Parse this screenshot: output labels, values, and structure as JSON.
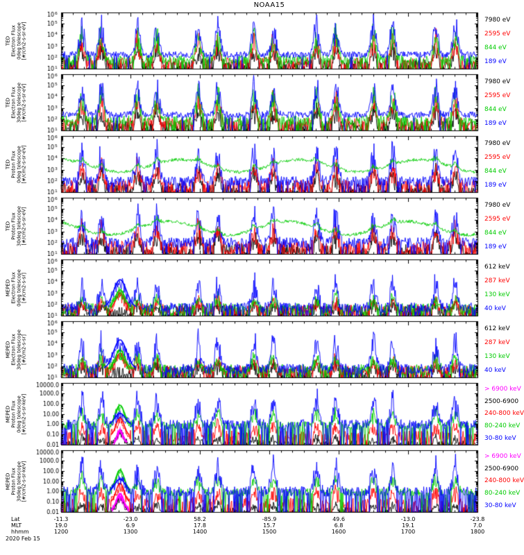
{
  "chart_data": {
    "type": "line",
    "title": "NOAA15",
    "date_label": "2020 Feb 15",
    "x_range_hours": [
      12,
      18
    ],
    "grid": false,
    "legend_position": "right",
    "clusters": [
      12.3,
      12.58,
      13.1,
      13.38,
      13.98,
      14.26,
      14.78,
      15.06,
      15.68,
      15.96,
      16.5,
      16.78,
      17.4,
      17.68
    ],
    "cluster_w": 0.05,
    "colors": {
      "black": "#000000",
      "red": "#ff0000",
      "green": "#00cc00",
      "blue": "#0000ff",
      "magenta": "#ff00ff"
    },
    "xaxis": {
      "rows": [
        {
          "label": "Lat",
          "values": [
            "-11.3",
            "-23.0",
            "58.2",
            "-85.9",
            "49.6",
            "-13.0",
            "-23.8"
          ]
        },
        {
          "label": "MLT",
          "values": [
            "19.0",
            "6.9",
            "17.8",
            "15.7",
            "6.8",
            "19.1",
            "7.0"
          ]
        },
        {
          "label": "hhmm",
          "values": [
            "1200",
            "1300",
            "1400",
            "1500",
            "1600",
            "1700",
            "1800"
          ]
        }
      ]
    },
    "panels": [
      {
        "name": "ted-electron-flux-0deg",
        "h": 86,
        "ymin": 1,
        "ymax": 6,
        "ytick": {
          "style": "pow"
        },
        "ylabel": [
          "TED",
          "Electron Flux",
          "0deg telescope",
          "[#/cm2-s-sr-eV]"
        ],
        "legend": [
          {
            "label": "7980 eV",
            "color": "#000000"
          },
          {
            "label": "2595 eV",
            "color": "#ff0000"
          },
          {
            "label": "844 eV",
            "color": "#00cc00"
          },
          {
            "label": "189 eV",
            "color": "#0000ff"
          }
        ],
        "series": [
          {
            "label": "7980 eV",
            "color": "#000000",
            "base": 1.25,
            "noise": 0.55,
            "drop": 0.32,
            "spike": 2.0
          },
          {
            "label": "2595 eV",
            "color": "#ff0000",
            "base": 1.5,
            "noise": 0.5,
            "drop": 0.26,
            "spike": 2.6
          },
          {
            "label": "844 eV",
            "color": "#00cc00",
            "base": 1.75,
            "noise": 0.45,
            "drop": 0.2,
            "spike": 3.0
          },
          {
            "label": "189 eV",
            "color": "#0000ff",
            "base": 2.25,
            "noise": 0.28,
            "drop": 0.04,
            "spike": 3.4
          }
        ]
      },
      {
        "name": "ted-electron-flux-30deg",
        "h": 86,
        "ymin": 1,
        "ymax": 6,
        "ytick": {
          "style": "pow"
        },
        "ylabel": [
          "TED",
          "Electron Flux",
          "30deg telescope",
          "[#/cm2-s-sr-eV]"
        ],
        "legend": [
          {
            "label": "7980 eV",
            "color": "#000000"
          },
          {
            "label": "2595 eV",
            "color": "#ff0000"
          },
          {
            "label": "844 eV",
            "color": "#00cc00"
          },
          {
            "label": "189 eV",
            "color": "#0000ff"
          }
        ],
        "series": [
          {
            "label": "7980 eV",
            "color": "#000000",
            "base": 1.3,
            "noise": 0.55,
            "drop": 0.3,
            "spike": 2.0
          },
          {
            "label": "2595 eV",
            "color": "#ff0000",
            "base": 1.6,
            "noise": 0.5,
            "drop": 0.24,
            "spike": 2.6
          },
          {
            "label": "844 eV",
            "color": "#00cc00",
            "base": 1.85,
            "noise": 0.45,
            "drop": 0.18,
            "spike": 3.0
          },
          {
            "label": "189 eV",
            "color": "#0000ff",
            "base": 2.4,
            "noise": 0.28,
            "drop": 0.04,
            "spike": 3.3
          }
        ]
      },
      {
        "name": "ted-proton-flux-0deg",
        "h": 86,
        "ymin": 1,
        "ymax": 6,
        "ytick": {
          "style": "pow"
        },
        "ylabel": [
          "TED",
          "Proton Flux",
          "0deg telescope",
          "[#/cm2-s-sr-eV]"
        ],
        "legend": [
          {
            "label": "7980 eV",
            "color": "#000000"
          },
          {
            "label": "2595 eV",
            "color": "#ff0000"
          },
          {
            "label": "844 eV",
            "color": "#00cc00"
          },
          {
            "label": "189 eV",
            "color": "#0000ff"
          }
        ],
        "series": [
          {
            "label": "7980 eV",
            "color": "#000000",
            "base": 1.25,
            "noise": 0.6,
            "drop": 0.38,
            "spike": 1.9
          },
          {
            "label": "2595 eV",
            "color": "#ff0000",
            "base": 1.55,
            "noise": 0.55,
            "drop": 0.3,
            "spike": 2.2
          },
          {
            "label": "189 eV",
            "color": "#0000ff",
            "base": 1.95,
            "noise": 0.45,
            "drop": 0.15,
            "spike": 3.5
          },
          {
            "label": "844 eV",
            "color": "#00cc00",
            "base": 3.35,
            "noise": 0.14,
            "drop": 0,
            "spike": 0.5,
            "wave": {
              "amp": 0.55,
              "period": 1.72,
              "phase": 1.6
            }
          }
        ]
      },
      {
        "name": "ted-proton-flux-30deg",
        "h": 86,
        "ymin": 1,
        "ymax": 6,
        "ytick": {
          "style": "pow"
        },
        "ylabel": [
          "TED",
          "Proton Flux",
          "30deg telescope",
          "[#/cm2-s-sr-eV]"
        ],
        "legend": [
          {
            "label": "7980 eV",
            "color": "#000000"
          },
          {
            "label": "2595 eV",
            "color": "#ff0000"
          },
          {
            "label": "844 eV",
            "color": "#00cc00"
          },
          {
            "label": "189 eV",
            "color": "#0000ff"
          }
        ],
        "series": [
          {
            "label": "7980 eV",
            "color": "#000000",
            "base": 1.3,
            "noise": 0.6,
            "drop": 0.36,
            "spike": 1.9
          },
          {
            "label": "2595 eV",
            "color": "#ff0000",
            "base": 1.6,
            "noise": 0.55,
            "drop": 0.28,
            "spike": 2.2
          },
          {
            "label": "189 eV",
            "color": "#0000ff",
            "base": 2.0,
            "noise": 0.45,
            "drop": 0.14,
            "spike": 3.4
          },
          {
            "label": "844 eV",
            "color": "#00cc00",
            "base": 3.3,
            "noise": 0.14,
            "drop": 0,
            "spike": 0.5,
            "wave": {
              "amp": 0.6,
              "period": 1.72,
              "phase": 2.2
            }
          }
        ]
      },
      {
        "name": "meped-electron-flux-0deg",
        "h": 86,
        "ymin": 1,
        "ymax": 6,
        "ytick": {
          "style": "pow"
        },
        "ylabel": [
          "MEPED",
          "Electron Flux",
          "0deg telescope",
          "[#/cm2-s-sr]"
        ],
        "legend": [
          {
            "label": "612 keV",
            "color": "#000000"
          },
          {
            "label": "287 keV",
            "color": "#ff0000"
          },
          {
            "label": "130 keV",
            "color": "#00cc00"
          },
          {
            "label": "40 keV",
            "color": "#0000ff"
          }
        ],
        "series": [
          {
            "label": "612 keV",
            "color": "#000000",
            "base": 1.35,
            "noise": 0.55,
            "drop": 0.3,
            "spike": 0.8
          },
          {
            "label": "287 keV",
            "color": "#ff0000",
            "base": 1.5,
            "noise": 0.5,
            "drop": 0.25,
            "spike": 1.0,
            "humps": [
              {
                "c": 12.85,
                "w": 0.09,
                "h": 1.5
              }
            ]
          },
          {
            "label": "130 keV",
            "color": "#00cc00",
            "base": 1.6,
            "noise": 0.5,
            "drop": 0.2,
            "spike": 1.3,
            "humps": [
              {
                "c": 12.85,
                "w": 0.1,
                "h": 1.7
              }
            ]
          },
          {
            "label": "40 keV",
            "color": "#0000ff",
            "base": 1.7,
            "noise": 0.45,
            "drop": 0.12,
            "spike": 2.9,
            "humps": [
              {
                "c": 12.85,
                "w": 0.13,
                "h": 2.5
              }
            ]
          }
        ]
      },
      {
        "name": "meped-electron-flux-30deg",
        "h": 86,
        "ymin": 1,
        "ymax": 6,
        "ytick": {
          "style": "pow"
        },
        "ylabel": [
          "MEPED",
          "Electron Flux",
          "30deg telescope",
          "[#/cm2-s-sr]"
        ],
        "legend": [
          {
            "label": "612 keV",
            "color": "#000000"
          },
          {
            "label": "287 keV",
            "color": "#ff0000"
          },
          {
            "label": "130 keV",
            "color": "#00cc00"
          },
          {
            "label": "40 keV",
            "color": "#0000ff"
          }
        ],
        "series": [
          {
            "label": "612 keV",
            "color": "#000000",
            "base": 1.4,
            "noise": 0.55,
            "drop": 0.28,
            "spike": 0.9
          },
          {
            "label": "287 keV",
            "color": "#ff0000",
            "base": 1.55,
            "noise": 0.5,
            "drop": 0.23,
            "spike": 1.2,
            "humps": [
              {
                "c": 12.85,
                "w": 0.09,
                "h": 1.6
              }
            ]
          },
          {
            "label": "130 keV",
            "color": "#00cc00",
            "base": 1.65,
            "noise": 0.5,
            "drop": 0.18,
            "spike": 1.5,
            "humps": [
              {
                "c": 12.85,
                "w": 0.1,
                "h": 1.8
              }
            ]
          },
          {
            "label": "40 keV",
            "color": "#0000ff",
            "base": 1.75,
            "noise": 0.45,
            "drop": 0.1,
            "spike": 3.1,
            "humps": [
              {
                "c": 12.85,
                "w": 0.13,
                "h": 2.6
              }
            ]
          }
        ]
      },
      {
        "name": "meped-proton-flux-0deg",
        "h": 94,
        "ymin": -2,
        "ymax": 4,
        "ytick": {
          "style": "dec",
          "labels": [
            {
              "v": 4,
              "t": "10000.0"
            },
            {
              "v": 3,
              "t": "1000.0"
            },
            {
              "v": 2,
              "t": "100.0"
            },
            {
              "v": 1,
              "t": "10.00"
            },
            {
              "v": 0,
              "t": "1.00"
            },
            {
              "v": -1,
              "t": "0.10"
            },
            {
              "v": -2,
              "t": "0.01"
            }
          ]
        },
        "ylabel": [
          "MEPED",
          "Proton Flux",
          "0deg telescope",
          "[#/cm2-s-sr-keV]"
        ],
        "legend": [
          {
            "label": "> 6900 keV",
            "color": "#ff00ff"
          },
          {
            "label": "2500-6900",
            "color": "#000000"
          },
          {
            "label": "240-800 keV",
            "color": "#ff0000"
          },
          {
            "label": "80-240 keV",
            "color": "#00cc00"
          },
          {
            "label": "30-80 keV",
            "color": "#0000ff"
          }
        ],
        "series": [
          {
            "label": "2500-6900",
            "color": "#000000",
            "base": -1.95,
            "noise": 0.35,
            "drop": 0.5,
            "spike": 0.7,
            "humps": [
              {
                "c": 12.85,
                "w": 0.07,
                "h": 1.2
              }
            ]
          },
          {
            "label": "240-800 keV",
            "color": "#ff0000",
            "base": -1.15,
            "noise": 0.5,
            "drop": 0.42,
            "spike": 1.2,
            "humps": [
              {
                "c": 12.85,
                "w": 0.08,
                "h": 1.8
              }
            ]
          },
          {
            "label": "80-240 keV",
            "color": "#00cc00",
            "base": -0.15,
            "noise": 0.4,
            "drop": 0.18,
            "spike": 1.6,
            "humps": [
              {
                "c": 12.85,
                "w": 0.09,
                "h": 2.0
              }
            ]
          },
          {
            "label": "30-80 keV",
            "color": "#0000ff",
            "base": -0.05,
            "noise": 0.5,
            "drop": 0.28,
            "spike": 3.3,
            "humps": [
              {
                "c": 12.85,
                "w": 0.1,
                "h": 1.1
              }
            ]
          },
          {
            "label": "> 6900 keV",
            "color": "#ff00ff",
            "base": -1.95,
            "noise": 0.25,
            "drop": 0,
            "spike": 0,
            "gate": true,
            "lw": 1.5,
            "humps": [
              {
                "c": 12.85,
                "w": 0.07,
                "h": 1.1
              },
              {
                "c": 12.85,
                "w": 0.04,
                "h": 0.3
              }
            ]
          }
        ]
      },
      {
        "name": "meped-proton-flux-30deg",
        "h": 94,
        "ymin": -2,
        "ymax": 4,
        "ytick": {
          "style": "dec",
          "labels": [
            {
              "v": 4,
              "t": "10000.0"
            },
            {
              "v": 3,
              "t": "1000.0"
            },
            {
              "v": 2,
              "t": "100.0"
            },
            {
              "v": 1,
              "t": "10.00"
            },
            {
              "v": 0,
              "t": "1.00"
            },
            {
              "v": -1,
              "t": "0.10"
            },
            {
              "v": -2,
              "t": "0.01"
            }
          ]
        },
        "ylabel": [
          "MEPED",
          "Proton Flux",
          "30deg telescope",
          "[#/cm2-s-sr-keV]"
        ],
        "legend": [
          {
            "label": "> 6900 keV",
            "color": "#ff00ff"
          },
          {
            "label": "2500-6900",
            "color": "#000000"
          },
          {
            "label": "240-800 keV",
            "color": "#ff0000"
          },
          {
            "label": "80-240 keV",
            "color": "#00cc00"
          },
          {
            "label": "30-80 keV",
            "color": "#0000ff"
          }
        ],
        "series": [
          {
            "label": "2500-6900",
            "color": "#000000",
            "base": -1.9,
            "noise": 0.35,
            "drop": 0.48,
            "spike": 0.8,
            "humps": [
              {
                "c": 12.85,
                "w": 0.07,
                "h": 1.3
              }
            ]
          },
          {
            "label": "240-800 keV",
            "color": "#ff0000",
            "base": -1.1,
            "noise": 0.5,
            "drop": 0.4,
            "spike": 1.3,
            "humps": [
              {
                "c": 12.85,
                "w": 0.08,
                "h": 1.9
              }
            ]
          },
          {
            "label": "80-240 keV",
            "color": "#00cc00",
            "base": -0.1,
            "noise": 0.4,
            "drop": 0.16,
            "spike": 1.7,
            "humps": [
              {
                "c": 12.85,
                "w": 0.09,
                "h": 2.2
              }
            ]
          },
          {
            "label": "30-80 keV",
            "color": "#0000ff",
            "base": 0.0,
            "noise": 0.5,
            "drop": 0.26,
            "spike": 3.2,
            "humps": [
              {
                "c": 12.85,
                "w": 0.1,
                "h": 1.2
              }
            ]
          },
          {
            "label": "> 6900 keV",
            "color": "#ff00ff",
            "base": -1.9,
            "noise": 0.25,
            "drop": 0,
            "spike": 0,
            "gate": true,
            "lw": 1.6,
            "humps": [
              {
                "c": 12.85,
                "w": 0.08,
                "h": 1.4
              },
              {
                "c": 12.85,
                "w": 0.05,
                "h": 0.3
              }
            ]
          }
        ]
      }
    ]
  }
}
